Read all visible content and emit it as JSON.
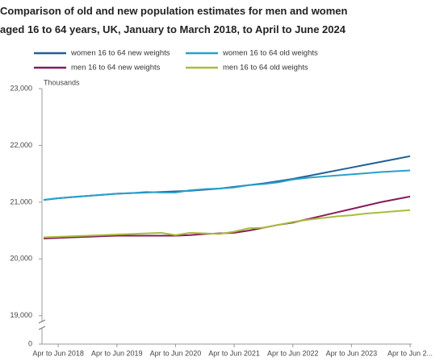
{
  "chart_data": {
    "type": "line",
    "title": "Comparison of old and new population estimates for men and women aged 16 to 64 years, UK, January to March 2018, to April to June 2024",
    "y_label": "Thousands",
    "categories": [
      null,
      "Apr to Jun 2018",
      null,
      null,
      null,
      "Apr to Jun 2019",
      null,
      null,
      null,
      "Apr to Jun 2020",
      null,
      null,
      null,
      "Apr to Jun 2021",
      null,
      null,
      null,
      "Apr to Jun 2022",
      null,
      null,
      null,
      "Apr to Jun 2023",
      null,
      null,
      null,
      "Apr to Jun 2..."
    ],
    "series": [
      {
        "name": "women 16 to 64 new weights",
        "color": "#206095",
        "values": [
          21040,
          21070,
          21090,
          21110,
          21130,
          21150,
          21160,
          21170,
          21180,
          21190,
          21200,
          21220,
          21240,
          21270,
          21300,
          21330,
          21370,
          21410,
          21460,
          21510,
          21560,
          21610,
          21660,
          21710,
          21760,
          21810
        ]
      },
      {
        "name": "women 16 to 64 old weights",
        "color": "#27a0cc",
        "values": [
          21040,
          21070,
          21090,
          21110,
          21130,
          21150,
          21160,
          21180,
          21170,
          21170,
          21210,
          21230,
          21240,
          21260,
          21300,
          21320,
          21350,
          21400,
          21430,
          21450,
          21470,
          21490,
          21510,
          21530,
          21545,
          21560
        ]
      },
      {
        "name": "men 16 to 64 new weights",
        "color": "#871a5b",
        "values": [
          20360,
          20370,
          20380,
          20390,
          20400,
          20410,
          20410,
          20410,
          20410,
          20410,
          20420,
          20440,
          20450,
          20460,
          20500,
          20550,
          20600,
          20640,
          20700,
          20760,
          20820,
          20880,
          20940,
          21000,
          21050,
          21100
        ]
      },
      {
        "name": "men 16 to 64 old weights",
        "color": "#a8bd3a",
        "values": [
          20380,
          20390,
          20400,
          20410,
          20420,
          20430,
          20440,
          20450,
          20460,
          20420,
          20460,
          20450,
          20440,
          20480,
          20540,
          20550,
          20600,
          20650,
          20690,
          20720,
          20750,
          20770,
          20800,
          20820,
          20840,
          20860
        ]
      }
    ],
    "ylim": [
      18500,
      23000
    ],
    "yticks": [
      0,
      {
        "value": 19000,
        "label": "19,000"
      },
      {
        "value": 20000,
        "label": "20,000"
      },
      {
        "value": 21000,
        "label": "21,000"
      },
      {
        "value": 22000,
        "label": "22,000"
      },
      {
        "value": 23000,
        "label": "23,000"
      }
    ],
    "y_axis_break": true,
    "grid": false
  }
}
